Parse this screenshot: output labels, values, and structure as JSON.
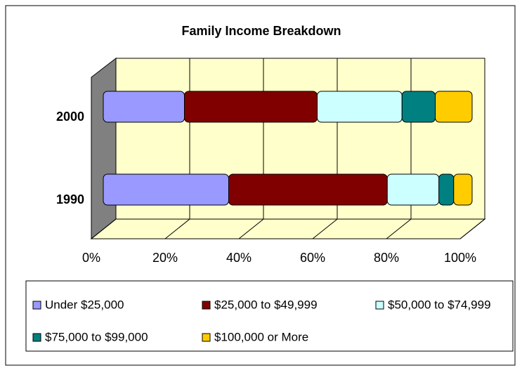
{
  "chart_data": {
    "type": "stacked-bar-horizontal",
    "title": "Family Income Breakdown",
    "categories": [
      "1990",
      "2000"
    ],
    "series": [
      {
        "name": "Under $25,000",
        "color": "#9999ff",
        "values": [
          34,
          22
        ]
      },
      {
        "name": "$25,000 to $49,999",
        "color": "#800000",
        "values": [
          43,
          36
        ]
      },
      {
        "name": "$50,000 to $74,999",
        "color": "#ccffff",
        "values": [
          14,
          23
        ]
      },
      {
        "name": "$75,000 to $99,000",
        "color": "#008080",
        "values": [
          4,
          9
        ]
      },
      {
        "name": "$100,000 or More",
        "color": "#ffcc00",
        "values": [
          5,
          10
        ]
      }
    ],
    "xlim": [
      0,
      100
    ],
    "xticks": [
      {
        "value": 0,
        "label": "0%"
      },
      {
        "value": 20,
        "label": "20%"
      },
      {
        "value": 40,
        "label": "40%"
      },
      {
        "value": 60,
        "label": "60%"
      },
      {
        "value": 80,
        "label": "80%"
      },
      {
        "value": 100,
        "label": "100%"
      }
    ],
    "grid": true
  }
}
